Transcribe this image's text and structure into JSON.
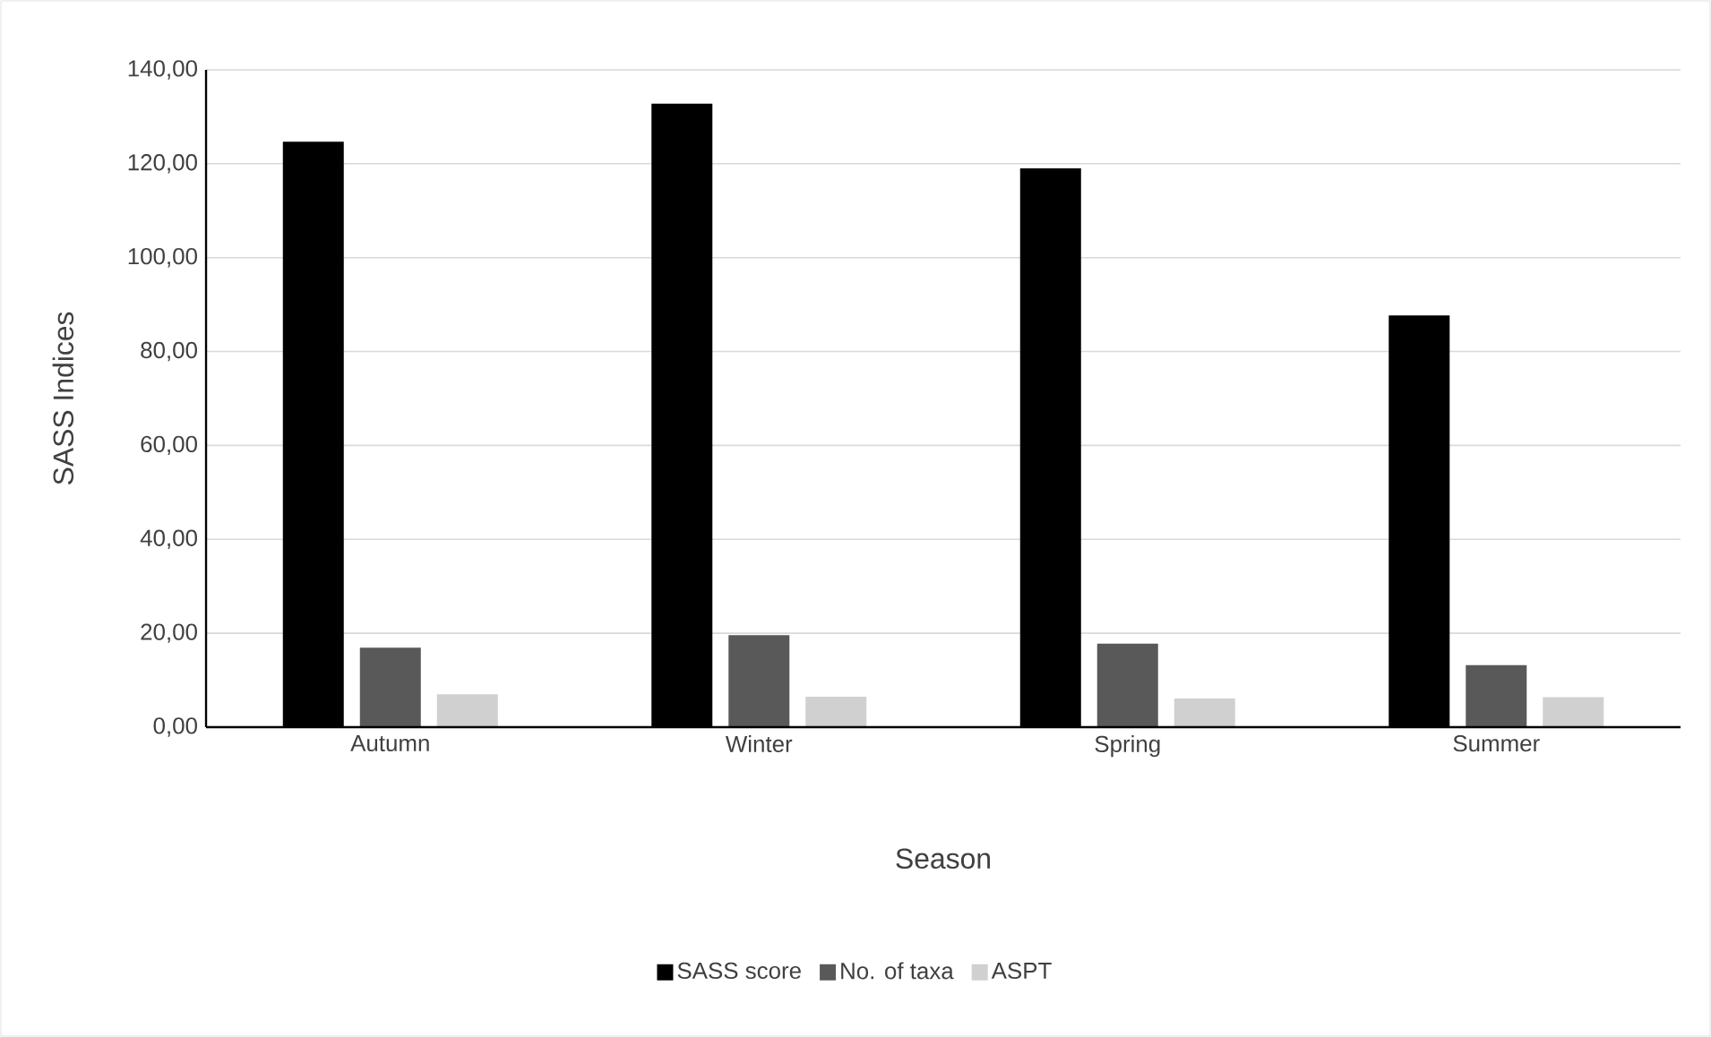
{
  "chart_data": {
    "type": "bar",
    "xlabel": "Season",
    "ylabel": "SASS Indices",
    "categories": [
      "Autumn",
      "Winter",
      "Spring",
      "Summer"
    ],
    "series": [
      {
        "name": "SASS score",
        "color": "#000000",
        "values": [
          124.7,
          132.8,
          119.0,
          87.7
        ]
      },
      {
        "name": "No. of taxa",
        "color": "#595959",
        "values": [
          16.9,
          19.6,
          17.8,
          13.2
        ]
      },
      {
        "name": "ASPT",
        "color": "#d0d0d0",
        "values": [
          7.0,
          6.5,
          6.1,
          6.4
        ]
      }
    ],
    "ylim": [
      0,
      140
    ],
    "yticks": [
      {
        "value": 0,
        "label": "0,00"
      },
      {
        "value": 20,
        "label": "20,00"
      },
      {
        "value": 40,
        "label": "40,00"
      },
      {
        "value": 60,
        "label": "60,00"
      },
      {
        "value": 80,
        "label": "80,00"
      },
      {
        "value": 100,
        "label": "100,00"
      },
      {
        "value": 120,
        "label": "120,00"
      },
      {
        "value": 140,
        "label": "140,00"
      }
    ],
    "grid": "y",
    "legend": "bottom"
  }
}
